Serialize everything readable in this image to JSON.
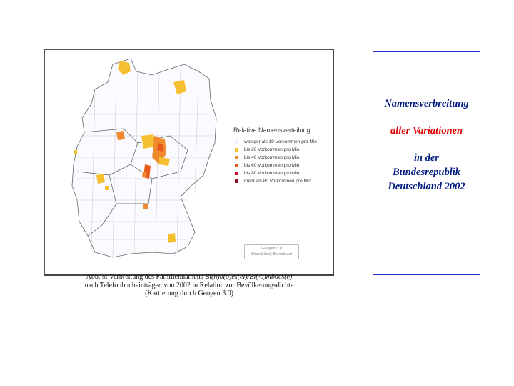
{
  "map": {
    "legend": {
      "title": "Relative Namensverteilung",
      "items": [
        {
          "label": "weniger als 10 Vorkommen pro Mio",
          "color": "#eeeeff"
        },
        {
          "label": "bis 20 Vorkommen pro Mio",
          "color": "#f5c030"
        },
        {
          "label": "bis 40 Vorkommen pro Mio",
          "color": "#f08a30"
        },
        {
          "label": "bis 60 Vorkommen pro Mio",
          "color": "#e85a1a"
        },
        {
          "label": "bis 80 Vorkommen pro Mio",
          "color": "#d01030"
        },
        {
          "label": "mehr als 80 Vorkommen pro Mio",
          "color": "#8a1020"
        }
      ]
    },
    "credit": {
      "line1": "Geogen 3.0",
      "line2": "Binnebösel, Binnebaud"
    }
  },
  "caption": {
    "line1_prefix": "Abb. 5: Verbreitung des Familiennamens ",
    "line1_name": "Bi(n)b(o)es(el)/Bi(/o)mboes(e)",
    "line2": "nach Telefonbucheinträgen  von 2002 in Relation zur Bevölkerungsdichte",
    "line3": "(Kartierung durch Geogen 3.0)"
  },
  "side_panel": {
    "line1": "Namensverbreitung",
    "line2": "aller Variationen",
    "line3": "in der",
    "line4": "Bundesrepublik",
    "line5": "Deutschland 2002",
    "color_dark": "#001a80",
    "color_red": "#e00000"
  }
}
